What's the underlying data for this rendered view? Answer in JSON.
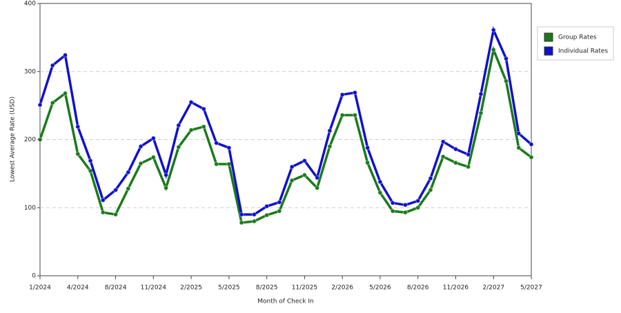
{
  "chart_data": {
    "type": "line",
    "x_label": "Month of Check In",
    "y_label": "Lowest Average Rate (USD)",
    "categories": [
      "1/2024",
      null,
      null,
      "4/2024",
      null,
      null,
      "8/2024",
      null,
      null,
      "11/2024",
      null,
      null,
      "2/2025",
      null,
      null,
      "5/2025",
      null,
      null,
      "8/2025",
      null,
      null,
      "11/2025",
      null,
      null,
      "2/2026",
      null,
      null,
      "5/2026",
      null,
      null,
      "8/2026",
      null,
      null,
      "11/2026",
      null,
      null,
      "2/2027",
      null,
      null,
      "5/2027"
    ],
    "series": [
      {
        "name": "Group Rates",
        "color": "#1a7a1a",
        "values": [
          200,
          254,
          268,
          179,
          154,
          93,
          90,
          128,
          165,
          174,
          129,
          189,
          214,
          219,
          164,
          164,
          78,
          80,
          89,
          95,
          140,
          148,
          129,
          190,
          236,
          236,
          166,
          122,
          95,
          93,
          100,
          126,
          175,
          166,
          160,
          239,
          332,
          286,
          188,
          174
        ]
      },
      {
        "name": "Individual Rates",
        "color": "#1010cc",
        "values": [
          251,
          309,
          324,
          219,
          169,
          111,
          126,
          152,
          190,
          202,
          148,
          221,
          255,
          245,
          195,
          188,
          90,
          90,
          102,
          108,
          160,
          169,
          144,
          213,
          266,
          269,
          188,
          138,
          107,
          104,
          110,
          143,
          197,
          186,
          178,
          267,
          361,
          319,
          209,
          193
        ]
      }
    ],
    "ylim": [
      0,
      400
    ],
    "yticks": [
      0,
      100,
      200,
      300,
      400
    ],
    "grid": true,
    "legend": "right"
  }
}
